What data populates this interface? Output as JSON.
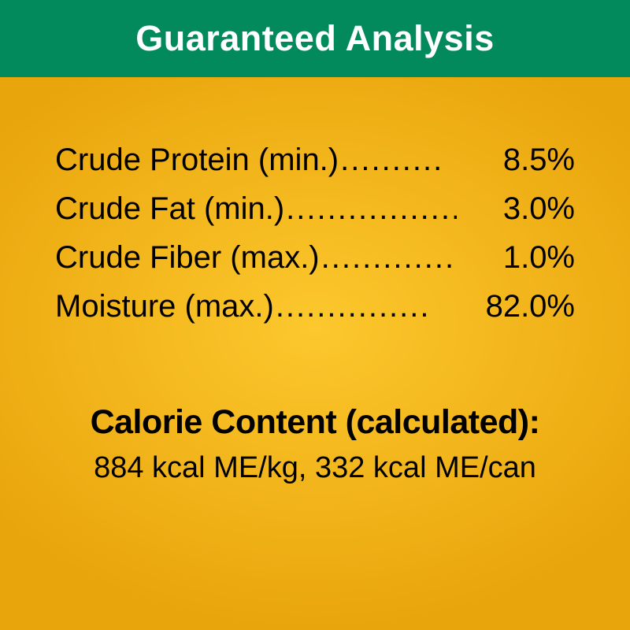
{
  "styles": {
    "header_bg": "#038a5c",
    "header_text_color": "#ffffff",
    "header_fontsize": 45,
    "body_bg_center": "#fcc82d",
    "body_bg_edge": "#e9a50c",
    "body_text_color": "#000000",
    "row_fontsize": 40,
    "calorie_heading_fontsize": 43,
    "calorie_text_fontsize": 38
  },
  "header": {
    "title": "Guaranteed Analysis"
  },
  "analysis": {
    "rows": [
      {
        "label": "Crude Protein (min.)",
        "value": "8.5%"
      },
      {
        "label": "Crude Fat (min.)",
        "value": "3.0%"
      },
      {
        "label": "Crude Fiber (max.)",
        "value": "1.0%"
      },
      {
        "label": "Moisture (max.)",
        "value": "82.0%"
      }
    ]
  },
  "calorie": {
    "heading": "Calorie Content (calculated):",
    "text": "884 kcal ME/kg, 332 kcal ME/can"
  }
}
